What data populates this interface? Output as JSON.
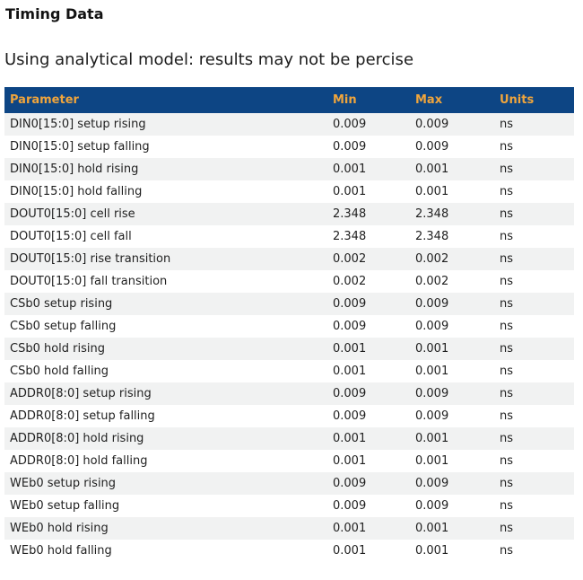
{
  "page": {
    "title": "Timing Data",
    "subtitle": "Using analytical model: results may not be percise"
  },
  "colors": {
    "header_background": "#0d4584",
    "header_text": "#f0a53c",
    "row_alt_background": "#f1f2f2",
    "row_background": "#ffffff",
    "body_text": "#1f1f1f"
  },
  "table": {
    "columns": [
      "Parameter",
      "Min",
      "Max",
      "Units"
    ],
    "rows": [
      {
        "parameter": "DIN0[15:0] setup rising",
        "min": "0.009",
        "max": "0.009",
        "units": "ns"
      },
      {
        "parameter": "DIN0[15:0] setup falling",
        "min": "0.009",
        "max": "0.009",
        "units": "ns"
      },
      {
        "parameter": "DIN0[15:0] hold rising",
        "min": "0.001",
        "max": "0.001",
        "units": "ns"
      },
      {
        "parameter": "DIN0[15:0] hold falling",
        "min": "0.001",
        "max": "0.001",
        "units": "ns"
      },
      {
        "parameter": "DOUT0[15:0] cell rise",
        "min": "2.348",
        "max": "2.348",
        "units": "ns"
      },
      {
        "parameter": "DOUT0[15:0] cell fall",
        "min": "2.348",
        "max": "2.348",
        "units": "ns"
      },
      {
        "parameter": "DOUT0[15:0] rise transition",
        "min": "0.002",
        "max": "0.002",
        "units": "ns"
      },
      {
        "parameter": "DOUT0[15:0] fall transition",
        "min": "0.002",
        "max": "0.002",
        "units": "ns"
      },
      {
        "parameter": "CSb0 setup rising",
        "min": "0.009",
        "max": "0.009",
        "units": "ns"
      },
      {
        "parameter": "CSb0 setup falling",
        "min": "0.009",
        "max": "0.009",
        "units": "ns"
      },
      {
        "parameter": "CSb0 hold rising",
        "min": "0.001",
        "max": "0.001",
        "units": "ns"
      },
      {
        "parameter": "CSb0 hold falling",
        "min": "0.001",
        "max": "0.001",
        "units": "ns"
      },
      {
        "parameter": "ADDR0[8:0] setup rising",
        "min": "0.009",
        "max": "0.009",
        "units": "ns"
      },
      {
        "parameter": "ADDR0[8:0] setup falling",
        "min": "0.009",
        "max": "0.009",
        "units": "ns"
      },
      {
        "parameter": "ADDR0[8:0] hold rising",
        "min": "0.001",
        "max": "0.001",
        "units": "ns"
      },
      {
        "parameter": "ADDR0[8:0] hold falling",
        "min": "0.001",
        "max": "0.001",
        "units": "ns"
      },
      {
        "parameter": "WEb0 setup rising",
        "min": "0.009",
        "max": "0.009",
        "units": "ns"
      },
      {
        "parameter": "WEb0 setup falling",
        "min": "0.009",
        "max": "0.009",
        "units": "ns"
      },
      {
        "parameter": "WEb0 hold rising",
        "min": "0.001",
        "max": "0.001",
        "units": "ns"
      },
      {
        "parameter": "WEb0 hold falling",
        "min": "0.001",
        "max": "0.001",
        "units": "ns"
      }
    ]
  }
}
